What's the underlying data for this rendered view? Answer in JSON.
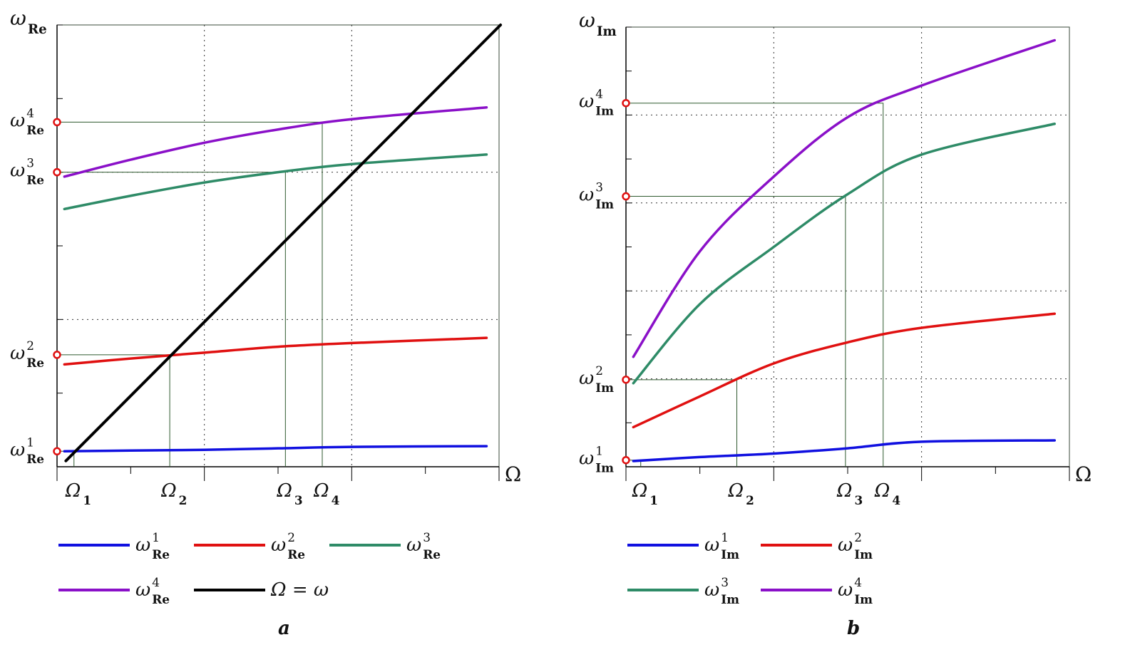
{
  "chart_data": [
    {
      "type": "line",
      "panel_caption": "a",
      "ylabel": {
        "base": "ω",
        "sub": "Re"
      },
      "xlabel": "Ω",
      "xlim": [
        0,
        6
      ],
      "ylim": [
        0,
        6
      ],
      "grid_x": [
        2,
        4
      ],
      "grid_y": [
        2,
        4
      ],
      "series": [
        {
          "name": "ω1Re",
          "label": {
            "base": "ω",
            "sup": "1",
            "sub": "Re"
          },
          "color": "#1010e0",
          "points": [
            [
              0.1,
              0.21
            ],
            [
              1,
              0.22
            ],
            [
              2,
              0.23
            ],
            [
              3,
              0.25
            ],
            [
              4,
              0.27
            ],
            [
              5.83,
              0.28
            ]
          ]
        },
        {
          "name": "ω2Re",
          "label": {
            "base": "ω",
            "sup": "2",
            "sub": "Re"
          },
          "color": "#e01010",
          "points": [
            [
              0.1,
              1.39
            ],
            [
              1,
              1.47
            ],
            [
              2,
              1.55
            ],
            [
              3,
              1.63
            ],
            [
              4,
              1.68
            ],
            [
              5.83,
              1.75
            ]
          ]
        },
        {
          "name": "ω3Re",
          "label": {
            "base": "ω",
            "sup": "3",
            "sub": "Re"
          },
          "color": "#2e8b67",
          "points": [
            [
              0.1,
              3.5
            ],
            [
              1,
              3.68
            ],
            [
              2,
              3.86
            ],
            [
              3,
              4.0
            ],
            [
              4,
              4.11
            ],
            [
              5.83,
              4.24
            ]
          ]
        },
        {
          "name": "ω4Re",
          "label": {
            "base": "ω",
            "sup": "4",
            "sub": "Re"
          },
          "color": "#8a10c8",
          "points": [
            [
              0.1,
              3.94
            ],
            [
              1,
              4.17
            ],
            [
              2,
              4.4
            ],
            [
              3,
              4.58
            ],
            [
              4,
              4.72
            ],
            [
              5.83,
              4.88
            ]
          ]
        },
        {
          "name": "Ω = ω",
          "label": {
            "base": "Ω = ω",
            "sup": "",
            "sub": ""
          },
          "color": "#000000",
          "points": [
            [
              0.12,
              0.08
            ],
            [
              6.02,
              6.0
            ]
          ]
        }
      ],
      "markers": [
        {
          "omega": {
            "base": "Ω",
            "sub": "1"
          },
          "y_label": {
            "base": "ω",
            "sup": "1",
            "sub": "Re"
          },
          "x": 0.23,
          "y": 0.21
        },
        {
          "omega": {
            "base": "Ω",
            "sub": "2"
          },
          "y_label": {
            "base": "ω",
            "sup": "2",
            "sub": "Re"
          },
          "x": 1.53,
          "y": 1.52
        },
        {
          "omega": {
            "base": "Ω",
            "sub": "3"
          },
          "y_label": {
            "base": "ω",
            "sup": "3",
            "sub": "Re"
          },
          "x": 3.1,
          "y": 4.0
        },
        {
          "omega": {
            "base": "Ω",
            "sub": "4"
          },
          "y_label": {
            "base": "ω",
            "sup": "4",
            "sub": "Re"
          },
          "x": 3.6,
          "y": 4.68
        }
      ]
    },
    {
      "type": "line",
      "panel_caption": "b",
      "ylabel": {
        "base": "ω",
        "sub": "Im"
      },
      "xlabel": "Ω",
      "xlim": [
        0,
        6
      ],
      "ylim": [
        0,
        10
      ],
      "grid_x": [
        2,
        4
      ],
      "grid_y": [
        2,
        4,
        6,
        8
      ],
      "series": [
        {
          "name": "ω1Im",
          "label": {
            "base": "ω",
            "sup": "1",
            "sub": "Im"
          },
          "color": "#1010e0",
          "points": [
            [
              0.1,
              0.13
            ],
            [
              1,
              0.22
            ],
            [
              2,
              0.3
            ],
            [
              3,
              0.42
            ],
            [
              4,
              0.57
            ],
            [
              5.8,
              0.6
            ]
          ]
        },
        {
          "name": "ω2Im",
          "label": {
            "base": "ω",
            "sup": "2",
            "sub": "Im"
          },
          "color": "#e01010",
          "points": [
            [
              0.1,
              0.9
            ],
            [
              1,
              1.6
            ],
            [
              2,
              2.35
            ],
            [
              3,
              2.83
            ],
            [
              4,
              3.16
            ],
            [
              5.8,
              3.48
            ]
          ]
        },
        {
          "name": "ω3Im",
          "label": {
            "base": "ω",
            "sup": "3",
            "sub": "Im"
          },
          "color": "#2e8b67",
          "points": [
            [
              0.1,
              1.9
            ],
            [
              1,
              3.7
            ],
            [
              2,
              5.0
            ],
            [
              3,
              6.2
            ],
            [
              4,
              7.1
            ],
            [
              5.8,
              7.8
            ]
          ]
        },
        {
          "name": "ω4Im",
          "label": {
            "base": "ω",
            "sup": "4",
            "sub": "Im"
          },
          "color": "#8a10c8",
          "points": [
            [
              0.1,
              2.5
            ],
            [
              1,
              4.9
            ],
            [
              2,
              6.6
            ],
            [
              3,
              7.95
            ],
            [
              4,
              8.67
            ],
            [
              5.8,
              9.7
            ]
          ]
        }
      ],
      "markers": [
        {
          "omega": {
            "base": "Ω",
            "sub": "1"
          },
          "y_label": {
            "base": "ω",
            "sup": "1",
            "sub": "Im"
          },
          "x": 0.2,
          "y": 0.15
        },
        {
          "omega": {
            "base": "Ω",
            "sub": "2"
          },
          "y_label": {
            "base": "ω",
            "sup": "2",
            "sub": "Im"
          },
          "x": 1.5,
          "y": 1.98
        },
        {
          "omega": {
            "base": "Ω",
            "sub": "3"
          },
          "y_label": {
            "base": "ω",
            "sup": "3",
            "sub": "Im"
          },
          "x": 2.97,
          "y": 6.15
        },
        {
          "omega": {
            "base": "Ω",
            "sub": "4"
          },
          "y_label": {
            "base": "ω",
            "sup": "4",
            "sub": "Im"
          },
          "x": 3.48,
          "y": 8.27
        }
      ]
    }
  ]
}
